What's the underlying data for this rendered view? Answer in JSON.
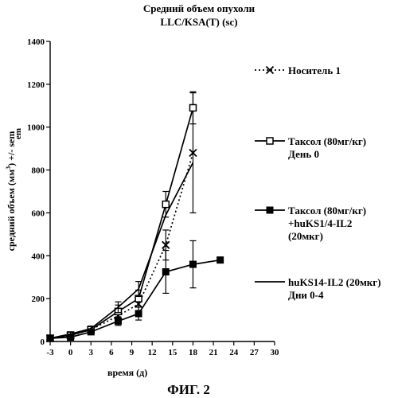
{
  "caption": "ФИГ. 2",
  "chart_data": {
    "type": "line",
    "title": "Средний объем опухоли",
    "subtitle": "LLC/KSA(T) (sc)",
    "xlabel": "время (д)",
    "ylabel": "средний объем (мм³) +/- sem",
    "ylabel_parts": {
      "before": "средний объем (мм",
      "sup": "3",
      "after": ") +/- sem"
    },
    "side_label": "em",
    "xlim": [
      -3,
      30
    ],
    "ylim": [
      0,
      1400
    ],
    "xticks": [
      "-3",
      "0",
      "3",
      "6",
      "9",
      "12",
      "15",
      "18",
      "21",
      "24",
      "27",
      "30"
    ],
    "yticks": [
      "0",
      "200",
      "400",
      "600",
      "800",
      "1000",
      "1200",
      "1400"
    ],
    "grid": false,
    "legend_position": "right",
    "series": [
      {
        "name": "Носитель 1",
        "label_lines": [
          "Носитель 1"
        ],
        "marker": "x",
        "line": "dotted",
        "x": [
          -3,
          0,
          3,
          7,
          10,
          14,
          18
        ],
        "y": [
          15,
          28,
          55,
          120,
          175,
          450,
          880
        ],
        "err": [
          5,
          8,
          12,
          25,
          40,
          70,
          280
        ]
      },
      {
        "name": "Таксол (80мг/кг) День 0",
        "label_lines": [
          "Таксол (80мг/кг)",
          "День 0"
        ],
        "marker": "open-square",
        "line": "solid",
        "x": [
          -3,
          0,
          3,
          7,
          10,
          14,
          18
        ],
        "y": [
          15,
          30,
          55,
          140,
          200,
          640,
          1090
        ],
        "err": [
          5,
          8,
          12,
          30,
          40,
          60,
          75
        ]
      },
      {
        "name": "Таксол (80мг/кг) +huKS1/4-IL2 (20мкг)",
        "label_lines": [
          "Таксол  (80мг/кг)",
          "+huKS1/4-IL2",
          "(20мкг)"
        ],
        "marker": "filled-square",
        "line": "solid",
        "x": [
          -3,
          0,
          3,
          7,
          10,
          14,
          18,
          22
        ],
        "y": [
          15,
          20,
          45,
          95,
          130,
          325,
          360,
          380
        ],
        "err": [
          5,
          6,
          10,
          20,
          30,
          100,
          110,
          0
        ]
      },
      {
        "name": "huKS14-IL2 (20мкг) Дни 0-4",
        "label_lines": [
          "huKS14-IL2 (20мкг)",
          "Дни 0-4"
        ],
        "marker": "none",
        "line": "solid",
        "x": [
          -3,
          0,
          3,
          7,
          10,
          14,
          18
        ],
        "y": [
          15,
          35,
          60,
          160,
          245,
          590,
          835
        ],
        "err": [
          5,
          8,
          12,
          25,
          35,
          0,
          0
        ]
      }
    ]
  }
}
